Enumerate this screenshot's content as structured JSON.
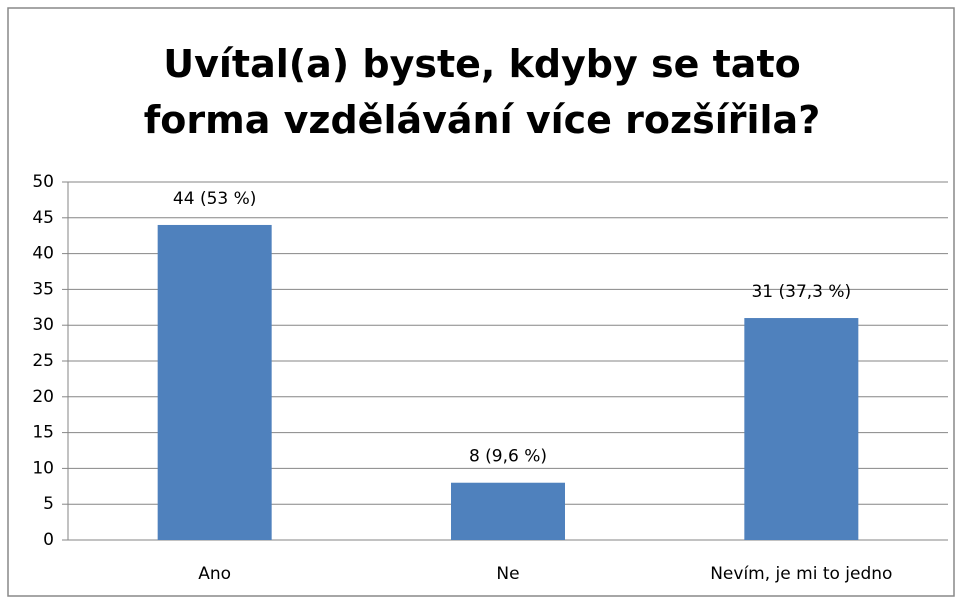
{
  "chart_data": {
    "type": "bar",
    "title": "Uvítal(a) byste, kdyby se tato forma vzdělávání více rozšířila?",
    "categories": [
      "Ano",
      "Ne",
      "Nevím, je mi to jedno"
    ],
    "values": [
      44,
      8,
      31
    ],
    "value_labels": [
      "44 (53 %)",
      "8 (9,6 %)",
      "31 (37,3 %)"
    ],
    "color": "#4f81bd",
    "ylim": [
      0,
      50
    ],
    "yticks": [
      0,
      5,
      10,
      15,
      20,
      25,
      30,
      35,
      40,
      45,
      50
    ],
    "grid": true
  }
}
